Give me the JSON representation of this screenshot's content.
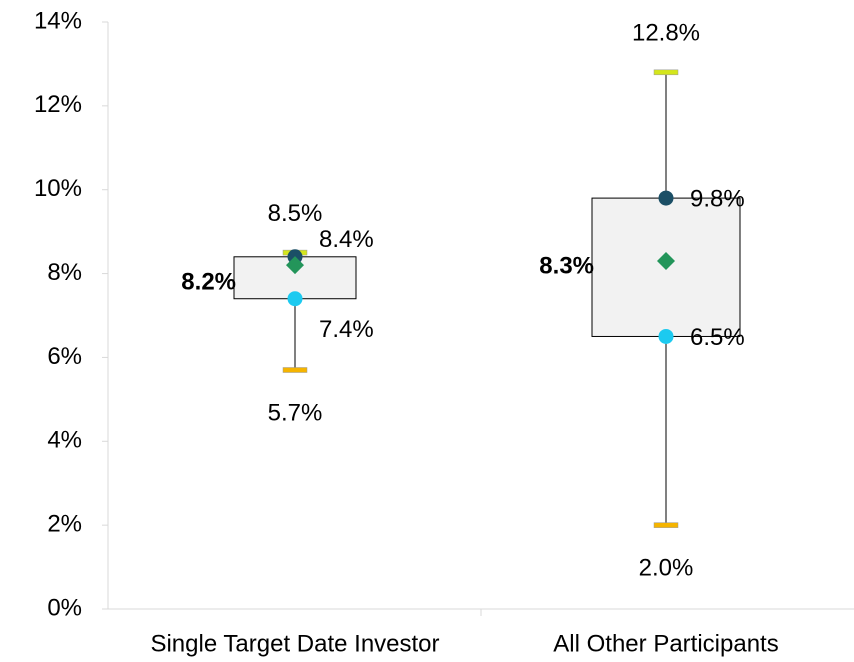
{
  "chart_data": {
    "type": "box",
    "categories": [
      "Single Target Date Investor",
      "All Other Participants"
    ],
    "ylim": [
      0,
      14
    ],
    "yticks": [
      {
        "value": 0,
        "label": "0%"
      },
      {
        "value": 2,
        "label": "2%"
      },
      {
        "value": 4,
        "label": "4%"
      },
      {
        "value": 6,
        "label": "6%"
      },
      {
        "value": 8,
        "label": "8%"
      },
      {
        "value": 10,
        "label": "10%"
      },
      {
        "value": 12,
        "label": "12%"
      },
      {
        "value": 14,
        "label": "14%"
      }
    ],
    "box_color": "#f2f2f2",
    "max": {
      "values": [
        8.5,
        12.8
      ],
      "value_labels": [
        "8.5%",
        "12.8%"
      ],
      "color": "#d4e61c"
    },
    "q3": {
      "values": [
        8.4,
        9.8
      ],
      "value_labels": [
        "8.4%",
        "9.8%"
      ],
      "color": "#1b4f66"
    },
    "mean": {
      "values": [
        8.2,
        8.3
      ],
      "value_labels": [
        "8.2%",
        "8.3%"
      ],
      "color": "#23955a"
    },
    "q1": {
      "values": [
        7.4,
        6.5
      ],
      "value_labels": [
        "7.4%",
        "6.5%"
      ],
      "color": "#1ccaf0"
    },
    "min": {
      "values": [
        5.7,
        2.0
      ],
      "value_labels": [
        "5.7%",
        "2.0%"
      ],
      "color": "#f5b400"
    }
  }
}
